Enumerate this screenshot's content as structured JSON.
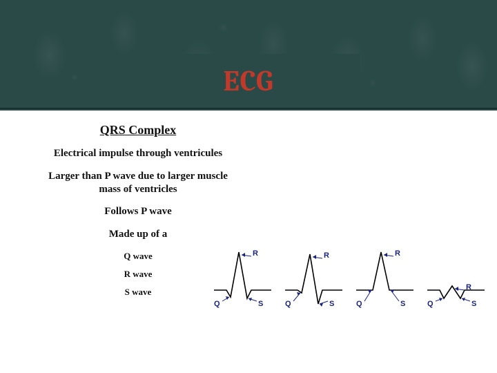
{
  "slide": {
    "title": "ECG",
    "title_color": "#c0392b",
    "title_fontsize": 42,
    "header_bg": "#2a4a47",
    "body_bg": "#ffffff"
  },
  "text": {
    "heading": "QRS Complex",
    "line1": "Electrical impulse through ventricules",
    "line2": "Larger than P wave due to larger muscle mass of ventricles",
    "line3": "Follows P wave",
    "line4": "Made up of a",
    "sub1": "Q wave",
    "sub2": "R wave",
    "sub3": "S wave"
  },
  "diagram": {
    "label_R": "R",
    "label_Q": "Q",
    "label_S": "S",
    "line_color": "#000000",
    "label_color": "#1a237e",
    "arrow_color": "#1a237e",
    "variants": [
      {
        "q_depth": 10,
        "r_height": 55,
        "s_depth": 12
      },
      {
        "q_depth": 4,
        "r_height": 52,
        "s_depth": 20
      },
      {
        "q_depth": 0,
        "r_height": 55,
        "s_depth": 0
      },
      {
        "q_depth": 12,
        "r_height": 6,
        "s_depth": 12
      }
    ]
  }
}
